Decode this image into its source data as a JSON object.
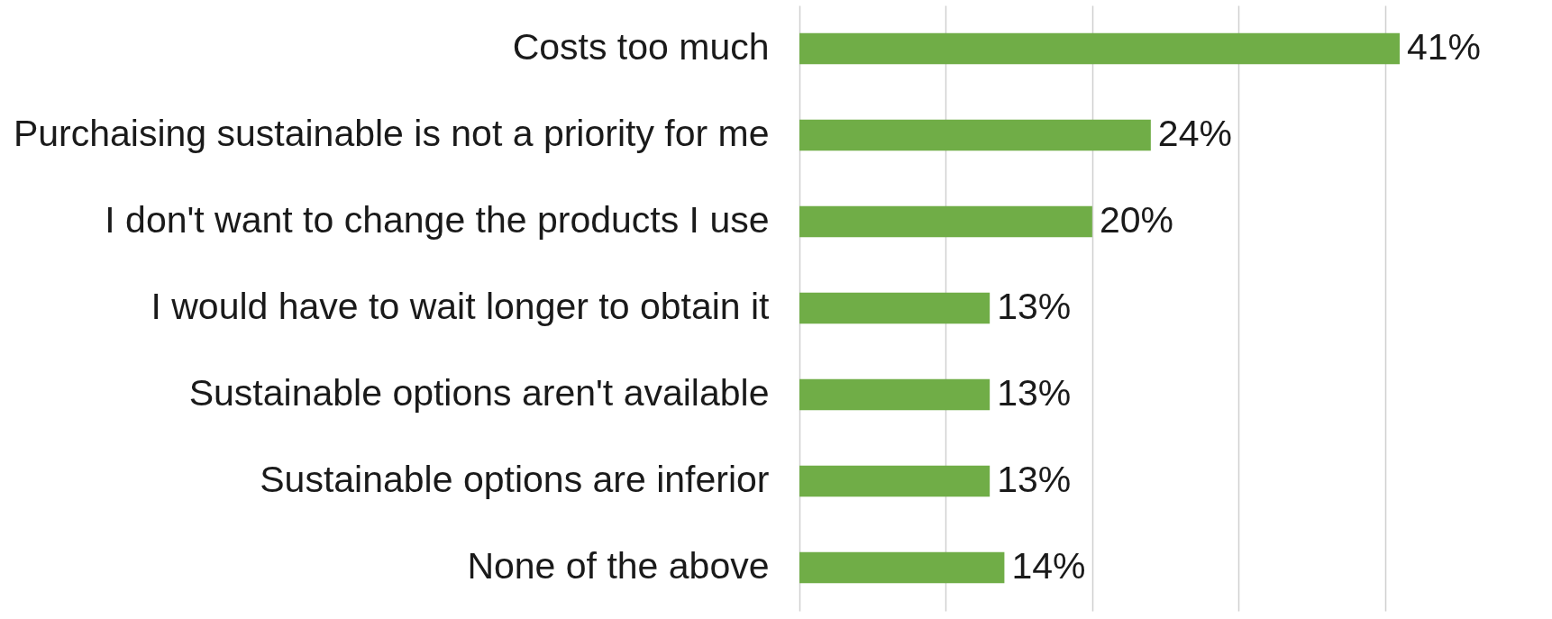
{
  "chart_data": {
    "type": "bar",
    "orientation": "horizontal",
    "categories": [
      "Costs too much",
      "Purchaising sustainable is not a priority for me",
      "I don't want to change the products I use",
      "I would have to wait longer to obtain it",
      "Sustainable options aren't available",
      "Sustainable options are inferior",
      "None of the above"
    ],
    "values": [
      41,
      24,
      20,
      13,
      13,
      13,
      14
    ],
    "color": "#70ad47",
    "xticks": [
      {
        "value": 0,
        "label": null
      },
      {
        "value": 10,
        "label": null
      },
      {
        "value": 20,
        "label": null
      },
      {
        "value": 30,
        "label": null
      },
      {
        "value": 40,
        "label": null
      }
    ],
    "value_labels": [
      "41%",
      "24%",
      "20%",
      "13%",
      "13%",
      "13%",
      "14%"
    ],
    "grid": "x",
    "tick_labels": "y"
  }
}
